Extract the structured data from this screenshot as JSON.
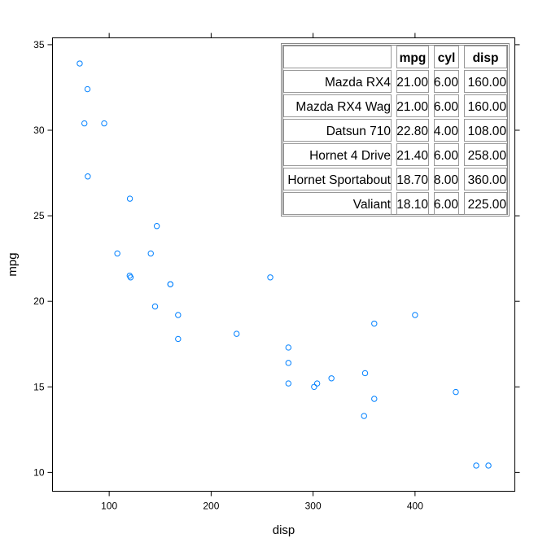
{
  "chart_data": {
    "type": "scatter",
    "title": "",
    "xlabel": "disp",
    "ylabel": "mpg",
    "xlim": [
      44.4,
      497.9
    ],
    "ylim": [
      8.9,
      35.4
    ],
    "x_ticks": [
      "100",
      "200",
      "300",
      "400"
    ],
    "y_ticks": [
      "10",
      "15",
      "20",
      "25",
      "30",
      "35"
    ],
    "grid": false,
    "marker_color": "#0080ff",
    "points": [
      {
        "x": 160,
        "y": 21.0
      },
      {
        "x": 160,
        "y": 21.0
      },
      {
        "x": 108,
        "y": 22.8
      },
      {
        "x": 258,
        "y": 21.4
      },
      {
        "x": 360,
        "y": 18.7
      },
      {
        "x": 225,
        "y": 18.1
      },
      {
        "x": 360,
        "y": 14.3
      },
      {
        "x": 146.7,
        "y": 24.4
      },
      {
        "x": 140.8,
        "y": 22.8
      },
      {
        "x": 167.6,
        "y": 19.2
      },
      {
        "x": 167.6,
        "y": 17.8
      },
      {
        "x": 275.8,
        "y": 16.4
      },
      {
        "x": 275.8,
        "y": 17.3
      },
      {
        "x": 275.8,
        "y": 15.2
      },
      {
        "x": 472,
        "y": 10.4
      },
      {
        "x": 460,
        "y": 10.4
      },
      {
        "x": 440,
        "y": 14.7
      },
      {
        "x": 78.7,
        "y": 32.4
      },
      {
        "x": 75.7,
        "y": 30.4
      },
      {
        "x": 71.1,
        "y": 33.9
      },
      {
        "x": 120.1,
        "y": 21.5
      },
      {
        "x": 318,
        "y": 15.5
      },
      {
        "x": 304,
        "y": 15.2
      },
      {
        "x": 350,
        "y": 13.3
      },
      {
        "x": 400,
        "y": 19.2
      },
      {
        "x": 79,
        "y": 27.3
      },
      {
        "x": 120.3,
        "y": 26.0
      },
      {
        "x": 95.1,
        "y": 30.4
      },
      {
        "x": 351,
        "y": 15.8
      },
      {
        "x": 145,
        "y": 19.7
      },
      {
        "x": 301,
        "y": 15.0
      },
      {
        "x": 121,
        "y": 21.4
      }
    ],
    "table": {
      "columns": [
        "",
        "mpg",
        "cyl",
        "disp"
      ],
      "rows": [
        [
          "Mazda RX4",
          "21.00",
          "6.00",
          "160.00"
        ],
        [
          "Mazda RX4 Wag",
          "21.00",
          "6.00",
          "160.00"
        ],
        [
          "Datsun 710",
          "22.80",
          "4.00",
          "108.00"
        ],
        [
          "Hornet 4 Drive",
          "21.40",
          "6.00",
          "258.00"
        ],
        [
          "Hornet Sportabout",
          "18.70",
          "8.00",
          "360.00"
        ],
        [
          "Valiant",
          "18.10",
          "6.00",
          "225.00"
        ]
      ]
    }
  }
}
